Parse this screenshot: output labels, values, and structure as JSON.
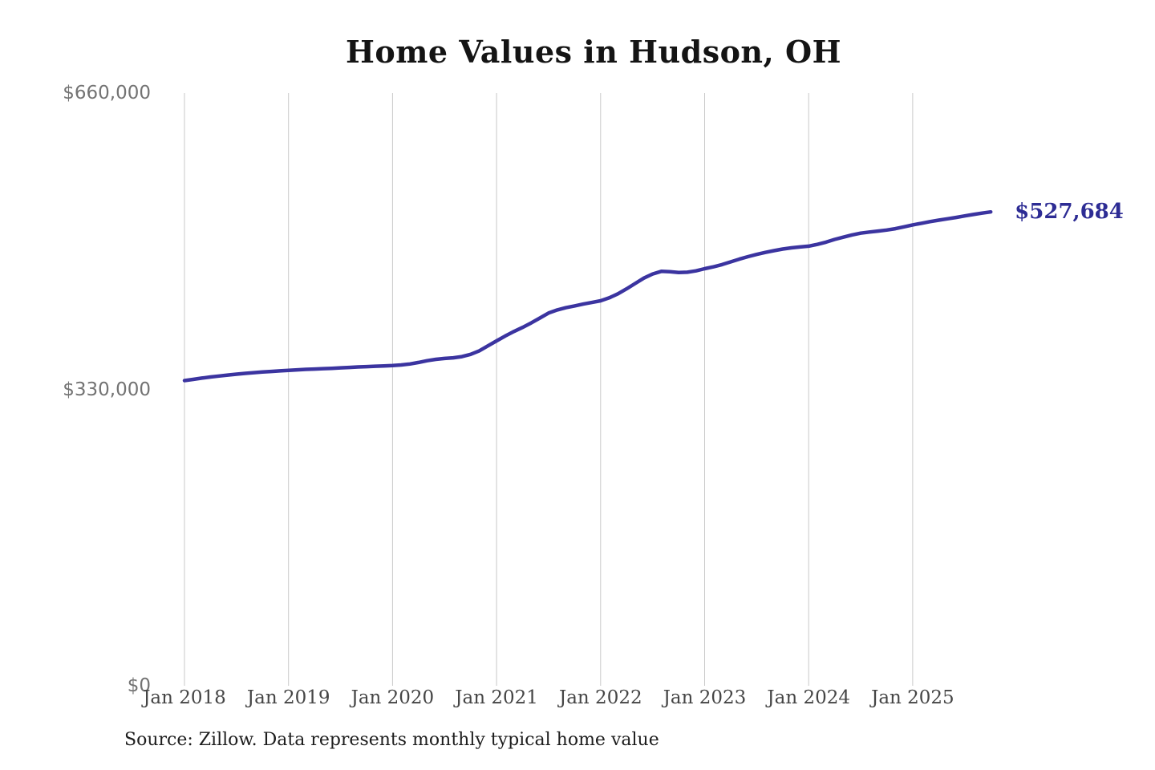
{
  "title": "Home Values in Hudson, OH",
  "source_note": "Source: Zillow. Data represents monthly typical home value",
  "colors": {
    "line": "#3b34a0",
    "end_label": "#2d2c94",
    "gridline": "#c9c9c9",
    "y_tick_text": "#737373",
    "x_tick_text": "#454545",
    "title_text": "#141414",
    "source_text": "#1d1d1d",
    "background": "#ffffff"
  },
  "chart_data": {
    "type": "line",
    "title": "Home Values in Hudson, OH",
    "series_name": "Monthly typical home value (Zillow)",
    "xlabel": "",
    "ylabel": "",
    "ylim": [
      0,
      660000
    ],
    "grid": "vertical-only",
    "legend": "none",
    "x_start": "2018-01",
    "x_end": "2025-10",
    "x_freq": "monthly",
    "x_ticks": [
      "Jan 2018",
      "Jan 2019",
      "Jan 2020",
      "Jan 2021",
      "Jan 2022",
      "Jan 2023",
      "Jan 2024",
      "Jan 2025"
    ],
    "y_ticks": [
      {
        "label": "$660,000",
        "value": 660000
      },
      {
        "label": "$330,000",
        "value": 330000
      },
      {
        "label": "$0",
        "value": 0
      }
    ],
    "last_point_label": "$527,684",
    "last_point_value": 527684,
    "values": [
      339800,
      341200,
      342600,
      343800,
      344900,
      346000,
      347000,
      347900,
      348700,
      349400,
      350000,
      350600,
      351200,
      351800,
      352300,
      352700,
      353100,
      353500,
      354000,
      354500,
      355000,
      355400,
      355800,
      356100,
      356500,
      357200,
      358300,
      360000,
      362000,
      363500,
      364500,
      365200,
      366500,
      369000,
      373000,
      378500,
      384000,
      389500,
      394500,
      399000,
      404000,
      409500,
      415000,
      418500,
      421000,
      423000,
      425000,
      426800,
      428700,
      432000,
      436500,
      442000,
      448000,
      454000,
      458500,
      461500,
      461000,
      460200,
      460500,
      462000,
      464400,
      466500,
      469000,
      472000,
      475000,
      477800,
      480300,
      482500,
      484500,
      486300,
      487600,
      488600,
      489500,
      491500,
      494000,
      497000,
      499500,
      502000,
      504000,
      505200,
      506300,
      507500,
      509000,
      511000,
      513200,
      515000,
      516800,
      518400,
      520000,
      521500,
      523200,
      524800,
      526300,
      527684
    ]
  }
}
